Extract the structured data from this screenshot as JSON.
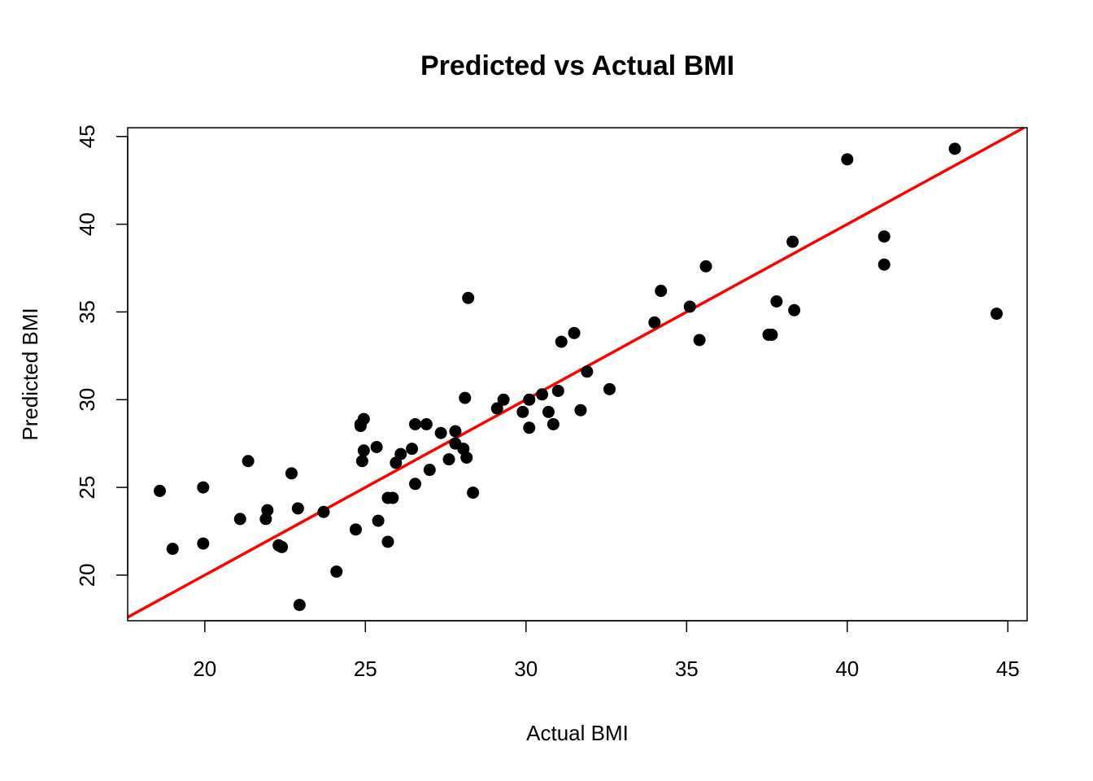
{
  "chart_data": {
    "type": "scatter",
    "title": "Predicted vs Actual BMI",
    "xlabel": "Actual BMI",
    "ylabel": "Predicted BMI",
    "xlim": [
      17.6,
      45.6
    ],
    "ylim": [
      17.4,
      45.5
    ],
    "xticks": [
      20,
      25,
      30,
      35,
      40,
      45
    ],
    "yticks": [
      20,
      25,
      30,
      35,
      40,
      45
    ],
    "grid": false,
    "point_color": "#000000",
    "reference_line": {
      "slope": 1,
      "intercept": 0,
      "color": "#ff0000"
    },
    "points": [
      [
        18.6,
        24.8
      ],
      [
        19.0,
        21.5
      ],
      [
        19.95,
        25.0
      ],
      [
        19.95,
        21.8
      ],
      [
        21.1,
        23.2
      ],
      [
        21.35,
        26.5
      ],
      [
        21.9,
        23.2
      ],
      [
        21.95,
        23.7
      ],
      [
        22.3,
        21.7
      ],
      [
        22.4,
        21.6
      ],
      [
        22.7,
        25.8
      ],
      [
        22.9,
        23.8
      ],
      [
        22.95,
        18.3
      ],
      [
        23.7,
        23.6
      ],
      [
        24.1,
        20.2
      ],
      [
        24.7,
        22.6
      ],
      [
        24.85,
        28.5
      ],
      [
        24.85,
        28.6
      ],
      [
        24.95,
        28.9
      ],
      [
        24.9,
        26.5
      ],
      [
        24.95,
        27.1
      ],
      [
        25.35,
        27.3
      ],
      [
        25.4,
        23.1
      ],
      [
        25.7,
        24.4
      ],
      [
        25.85,
        24.4
      ],
      [
        25.7,
        21.9
      ],
      [
        25.95,
        26.4
      ],
      [
        26.1,
        26.9
      ],
      [
        26.45,
        27.2
      ],
      [
        26.55,
        28.6
      ],
      [
        26.55,
        25.2
      ],
      [
        26.9,
        28.6
      ],
      [
        27.0,
        26.0
      ],
      [
        27.35,
        28.1
      ],
      [
        27.6,
        26.6
      ],
      [
        27.8,
        28.2
      ],
      [
        27.8,
        27.5
      ],
      [
        28.05,
        27.2
      ],
      [
        28.1,
        30.1
      ],
      [
        28.15,
        26.7
      ],
      [
        28.2,
        35.8
      ],
      [
        28.35,
        24.7
      ],
      [
        29.1,
        29.5
      ],
      [
        29.3,
        30.0
      ],
      [
        29.9,
        29.3
      ],
      [
        30.1,
        30.0
      ],
      [
        30.1,
        28.4
      ],
      [
        30.5,
        30.3
      ],
      [
        30.7,
        29.3
      ],
      [
        30.85,
        28.6
      ],
      [
        31.0,
        30.5
      ],
      [
        31.1,
        33.3
      ],
      [
        31.5,
        33.8
      ],
      [
        31.7,
        29.4
      ],
      [
        31.9,
        31.6
      ],
      [
        32.6,
        30.6
      ],
      [
        34.0,
        34.4
      ],
      [
        34.2,
        36.2
      ],
      [
        35.1,
        35.3
      ],
      [
        35.4,
        33.4
      ],
      [
        35.6,
        37.6
      ],
      [
        37.55,
        33.7
      ],
      [
        37.65,
        33.7
      ],
      [
        37.8,
        35.6
      ],
      [
        38.3,
        39.0
      ],
      [
        38.35,
        35.1
      ],
      [
        40.0,
        43.7
      ],
      [
        41.15,
        39.3
      ],
      [
        41.15,
        37.7
      ],
      [
        43.35,
        44.3
      ],
      [
        44.65,
        34.9
      ]
    ]
  }
}
